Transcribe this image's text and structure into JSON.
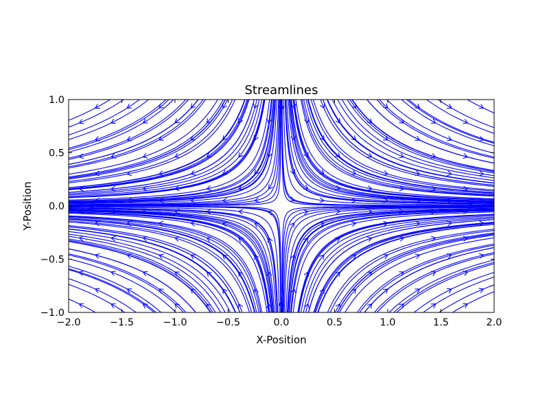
{
  "chart_data": {
    "type": "streamplot",
    "title": "Streamlines",
    "xlabel": "X-Position",
    "ylabel": "Y-Position",
    "xlim": [
      -2.0,
      2.0
    ],
    "ylim": [
      -1.0,
      1.0
    ],
    "xticks": [
      -2.0,
      -1.5,
      -1.0,
      -0.5,
      0.0,
      0.5,
      1.0,
      1.5,
      2.0
    ],
    "yticks": [
      -1.0,
      -0.5,
      0.0,
      0.5,
      1.0
    ],
    "xtick_labels": [
      "−2.0",
      "−1.5",
      "−1.0",
      "−0.5",
      "0.0",
      "0.5",
      "1.0",
      "1.5",
      "2.0"
    ],
    "ytick_labels": [
      "−1.0",
      "−0.5",
      "0.0",
      "0.5",
      "1.0"
    ],
    "line_color": "#0000ff",
    "flow_field": {
      "u": "x",
      "v": "-y",
      "description": "hyperbolic saddle flow centered at origin"
    },
    "grid": false
  }
}
